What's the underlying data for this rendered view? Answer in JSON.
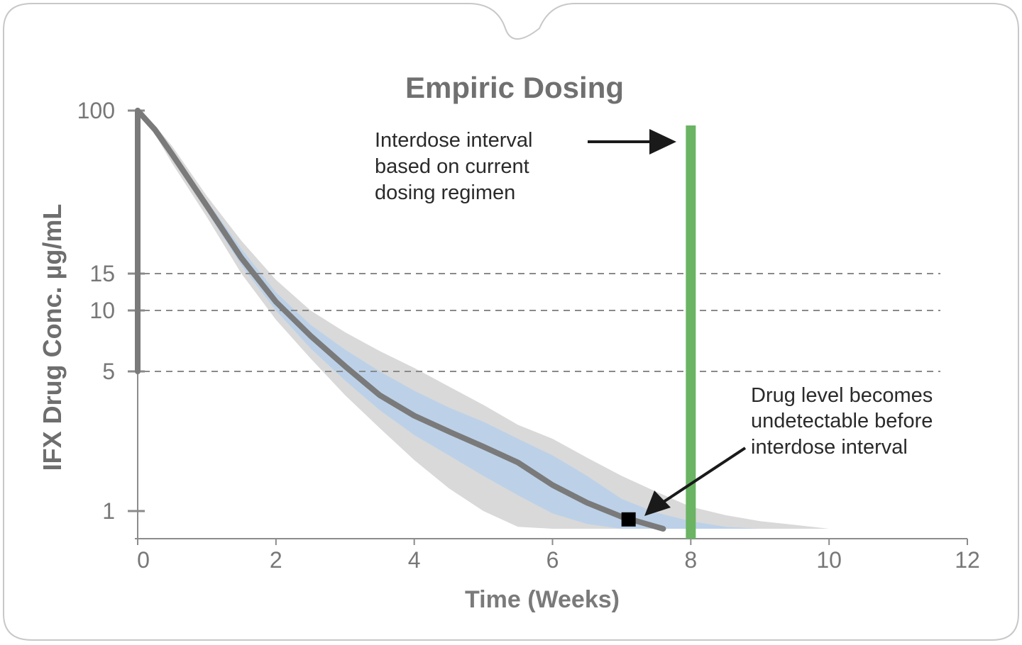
{
  "chart_data": {
    "type": "area",
    "title": "Empiric Dosing",
    "xlabel": "Time (Weeks)",
    "ylabel": "IFX Drug Conc. µg/mL",
    "xlim": [
      0,
      12
    ],
    "x_ticks": [
      "0",
      "2",
      "4",
      "6",
      "8",
      "10",
      "12"
    ],
    "y_ticks": [
      {
        "value": 100,
        "label": "100"
      },
      {
        "value": 15,
        "label": "15"
      },
      {
        "value": 10,
        "label": "10"
      },
      {
        "value": 5,
        "label": "5"
      },
      {
        "value": 1,
        "label": "1"
      }
    ],
    "reference_lines": [
      15,
      10,
      5
    ],
    "dose_bar": {
      "x": 0,
      "from": 5,
      "to": 100
    },
    "interdose_marker": {
      "x": 8,
      "color": "#6ab463"
    },
    "undetectable_point": {
      "x": 7.1,
      "y": 0.9
    },
    "series": [
      {
        "name": "median",
        "color": "#7a7a7a",
        "x": [
          0,
          0.25,
          0.5,
          1,
          1.5,
          2,
          2.5,
          3,
          3.5,
          4,
          4.5,
          5,
          5.5,
          6,
          6.5,
          7,
          7.5,
          7.6
        ],
        "y": [
          100,
          80,
          60,
          33,
          18,
          11,
          7.5,
          5.3,
          3.8,
          3.0,
          2.5,
          2.1,
          1.75,
          1.35,
          1.1,
          0.93,
          0.82,
          0.8
        ]
      },
      {
        "name": "inner band",
        "color": "#bcd1e8",
        "x": [
          0,
          0.25,
          0.5,
          1,
          1.5,
          2,
          2.5,
          3,
          3.5,
          4,
          4.5,
          5,
          5.5,
          6,
          6.5,
          7,
          7.5,
          8,
          8.5,
          9
        ],
        "upper": [
          100,
          82,
          63,
          35,
          20,
          12.2,
          8.5,
          6.4,
          5.0,
          4.0,
          3.3,
          2.8,
          2.3,
          1.9,
          1.5,
          1.15,
          0.98,
          0.88,
          0.82,
          0.8
        ],
        "lower": [
          100,
          78,
          57,
          31,
          16.5,
          10,
          6.5,
          4.5,
          3.2,
          2.4,
          1.9,
          1.5,
          1.2,
          0.97,
          0.85,
          0.8,
          0.8,
          0.8,
          0.8,
          0.8
        ]
      },
      {
        "name": "outer band",
        "color": "#d9d9d9",
        "x": [
          0,
          0.25,
          0.5,
          1,
          1.5,
          2,
          2.5,
          3,
          3.5,
          4,
          4.5,
          5,
          5.5,
          6,
          6.5,
          7,
          7.5,
          8,
          8.5,
          9,
          9.5,
          10,
          10.2
        ],
        "upper": [
          100,
          84,
          66,
          37,
          22,
          14,
          10,
          7.8,
          6.3,
          5.2,
          4.2,
          3.4,
          2.7,
          2.3,
          1.85,
          1.5,
          1.25,
          1.05,
          0.95,
          0.88,
          0.84,
          0.8,
          0.8
        ],
        "lower": [
          100,
          76,
          54,
          29,
          15,
          9,
          5.8,
          3.8,
          2.6,
          1.8,
          1.3,
          1.0,
          0.82,
          0.8,
          0.8,
          0.8,
          0.8,
          0.8,
          0.8,
          0.8,
          0.8,
          0.8,
          0.8
        ]
      }
    ],
    "annotations": [
      {
        "lines": [
          "Interdose interval",
          "based on current",
          "dosing regimen"
        ]
      },
      {
        "lines": [
          "Drug level becomes",
          "undetectable before",
          "interdose interval"
        ]
      }
    ]
  }
}
